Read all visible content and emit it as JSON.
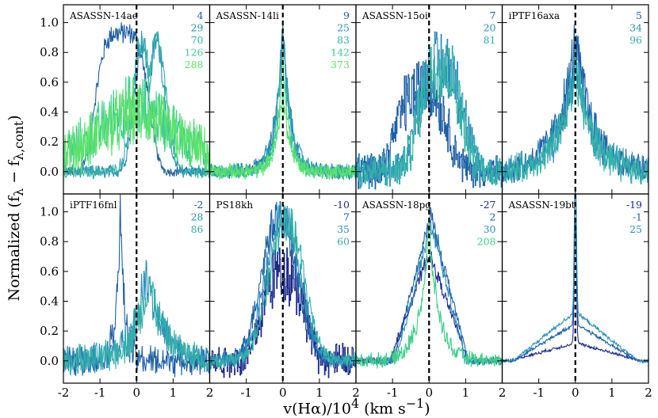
{
  "figure": {
    "xlabel_html": "v(Hα)/10<sup>4</sup> (km s<sup>−1</sup>)",
    "ylabel_html": "Normalized (f<sub>λ</sub> − f<sub>λ,cont</sub>)"
  },
  "chart_data": [
    {
      "type": "line",
      "title": "ASASSN-14ae",
      "xlim": [
        -2,
        2
      ],
      "ylim": [
        -0.15,
        1.12
      ],
      "x_ticks": [
        "-2",
        "-1",
        "0",
        "1",
        "2"
      ],
      "y_ticks": [
        "0.0",
        "0.2",
        "0.4",
        "0.6",
        "0.8",
        "1.0"
      ],
      "show_x_ticks": false,
      "show_y_ticks": true,
      "series": [
        {
          "name": "4",
          "color": "#1f5fa6",
          "shape": "broad_box",
          "peak": 0.93,
          "center": -0.4,
          "width": 1.3
        },
        {
          "name": "29",
          "color": "#2a8fb8",
          "shape": "double",
          "peak": 0.92,
          "center": 0.3,
          "width": 0.6
        },
        {
          "name": "70",
          "color": "#33b0a8",
          "shape": "double",
          "peak": 0.92,
          "center": 0.3,
          "width": 0.7
        },
        {
          "name": "126",
          "color": "#3ecf8a",
          "shape": "noisy",
          "peak": 0.35,
          "center": 0.0,
          "width": 1.5
        },
        {
          "name": "288",
          "color": "#5de36a",
          "shape": "noisy",
          "peak": 0.3,
          "center": 0.0,
          "width": 1.5
        }
      ]
    },
    {
      "type": "line",
      "title": "ASASSN-14li",
      "xlim": [
        -2,
        2
      ],
      "ylim": [
        -0.15,
        1.12
      ],
      "x_ticks": [
        "-2",
        "-1",
        "0",
        "1",
        "2"
      ],
      "y_ticks": [],
      "show_x_ticks": false,
      "show_y_ticks": false,
      "series": [
        {
          "name": "9",
          "color": "#1f5fa6",
          "shape": "peak",
          "peak": 0.98,
          "center": 0.0,
          "width": 0.45
        },
        {
          "name": "25",
          "color": "#2a8fb8",
          "shape": "peak",
          "peak": 0.95,
          "center": 0.0,
          "width": 0.5
        },
        {
          "name": "83",
          "color": "#33b0a8",
          "shape": "peak",
          "peak": 0.9,
          "center": 0.0,
          "width": 0.45
        },
        {
          "name": "142",
          "color": "#3ecf8a",
          "shape": "peak",
          "peak": 0.75,
          "center": 0.0,
          "width": 0.4
        },
        {
          "name": "373",
          "color": "#5de36a",
          "shape": "peak",
          "peak": 0.55,
          "center": 0.0,
          "width": 0.4
        }
      ]
    },
    {
      "type": "line",
      "title": "ASASSN-15oi",
      "xlim": [
        -2,
        2
      ],
      "ylim": [
        -0.15,
        1.12
      ],
      "x_ticks": [
        "-2",
        "-1",
        "0",
        "1",
        "2"
      ],
      "y_ticks": [],
      "show_x_ticks": false,
      "show_y_ticks": false,
      "series": [
        {
          "name": "7",
          "color": "#1f5fa6",
          "shape": "step_broad",
          "peak": 0.55,
          "center": -0.2,
          "width": 1.4
        },
        {
          "name": "20",
          "color": "#2a8fb8",
          "shape": "step_broad",
          "peak": 0.72,
          "center": 0.3,
          "width": 1.3
        },
        {
          "name": "81",
          "color": "#33b0a8",
          "shape": "step_broad",
          "peak": 0.7,
          "center": 0.3,
          "width": 1.2
        }
      ]
    },
    {
      "type": "line",
      "title": "iPTF16axa",
      "xlim": [
        -2,
        2
      ],
      "ylim": [
        -0.15,
        1.12
      ],
      "x_ticks": [
        "-2",
        "-1",
        "0",
        "1",
        "2"
      ],
      "y_ticks": [],
      "show_x_ticks": false,
      "show_y_ticks": false,
      "series": [
        {
          "name": "5",
          "color": "#1f5fa6",
          "shape": "noisy_peak",
          "peak": 0.85,
          "center": 0.0,
          "width": 1.0
        },
        {
          "name": "34",
          "color": "#2a8fb8",
          "shape": "noisy_peak",
          "peak": 0.75,
          "center": 0.0,
          "width": 0.9
        },
        {
          "name": "96",
          "color": "#33b0a8",
          "shape": "noisy_peak",
          "peak": 0.7,
          "center": 0.0,
          "width": 0.9
        }
      ]
    },
    {
      "type": "line",
      "title": "iPTF16fnl",
      "xlim": [
        -2,
        2
      ],
      "ylim": [
        -0.15,
        1.12
      ],
      "x_ticks": [
        "-2",
        "-1",
        "0",
        "1",
        "2"
      ],
      "y_ticks": [
        "0.0",
        "0.2",
        "0.4",
        "0.6",
        "0.8",
        "1.0"
      ],
      "show_x_ticks": true,
      "show_y_ticks": true,
      "series": [
        {
          "name": "-2",
          "color": "#1f5fa6",
          "shape": "noisy_peak",
          "peak": 0.98,
          "center": -0.45,
          "width": 0.25
        },
        {
          "name": "28",
          "color": "#2a8fb8",
          "shape": "noisy_peak",
          "peak": 0.62,
          "center": 0.3,
          "width": 0.8
        },
        {
          "name": "86",
          "color": "#33b0a8",
          "shape": "noisy_peak",
          "peak": 0.55,
          "center": 0.35,
          "width": 0.8
        }
      ]
    },
    {
      "type": "line",
      "title": "PS18kh",
      "xlim": [
        -2,
        2
      ],
      "ylim": [
        -0.15,
        1.12
      ],
      "x_ticks": [
        "-2",
        "-1",
        "0",
        "1",
        "2"
      ],
      "y_ticks": [],
      "show_x_ticks": true,
      "show_y_ticks": false,
      "series": [
        {
          "name": "-10",
          "color": "#1e2a8a",
          "shape": "step_broad",
          "peak": 0.6,
          "center": 0.0,
          "width": 1.2
        },
        {
          "name": "7",
          "color": "#1f5fa6",
          "shape": "broad_peak",
          "peak": 0.97,
          "center": -0.1,
          "width": 1.0
        },
        {
          "name": "35",
          "color": "#2a8fb8",
          "shape": "broad_peak",
          "peak": 0.95,
          "center": 0.0,
          "width": 1.0
        },
        {
          "name": "60",
          "color": "#33b0a8",
          "shape": "broad_peak",
          "peak": 0.92,
          "center": 0.1,
          "width": 1.0
        }
      ]
    },
    {
      "type": "line",
      "title": "ASASSN-18pg",
      "xlim": [
        -2,
        2
      ],
      "ylim": [
        -0.15,
        1.12
      ],
      "x_ticks": [
        "-2",
        "-1",
        "0",
        "1",
        "2"
      ],
      "y_ticks": [],
      "show_x_ticks": true,
      "show_y_ticks": false,
      "series": [
        {
          "name": "-27",
          "color": "#1e2a8a",
          "shape": "tri",
          "peak": 0.72,
          "center": 0.0,
          "width": 1.8
        },
        {
          "name": "2",
          "color": "#1f5fa6",
          "shape": "tri",
          "peak": 0.98,
          "center": 0.05,
          "width": 1.7
        },
        {
          "name": "30",
          "color": "#2a8fb8",
          "shape": "tri",
          "peak": 0.92,
          "center": 0.05,
          "width": 1.6
        },
        {
          "name": "208",
          "color": "#3ecf8a",
          "shape": "peak",
          "peak": 0.88,
          "center": 0.0,
          "width": 0.6
        }
      ]
    },
    {
      "type": "line",
      "title": "ASASSN-19bt",
      "xlim": [
        -2,
        2
      ],
      "ylim": [
        -0.15,
        1.12
      ],
      "x_ticks": [
        "-2",
        "-1",
        "0",
        "1",
        "2"
      ],
      "y_ticks": [],
      "show_x_ticks": true,
      "show_y_ticks": false,
      "series": [
        {
          "name": "-19",
          "color": "#1e2a8a",
          "shape": "flat_spike",
          "peak": 0.12,
          "center": 0.0,
          "width": 1.8
        },
        {
          "name": "-1",
          "color": "#1f5fa6",
          "shape": "flat_spike",
          "peak": 0.25,
          "center": 0.0,
          "width": 1.7
        },
        {
          "name": "25",
          "color": "#2a8fb8",
          "shape": "flat_spike",
          "peak": 0.33,
          "center": 0.0,
          "width": 1.7
        }
      ]
    }
  ]
}
